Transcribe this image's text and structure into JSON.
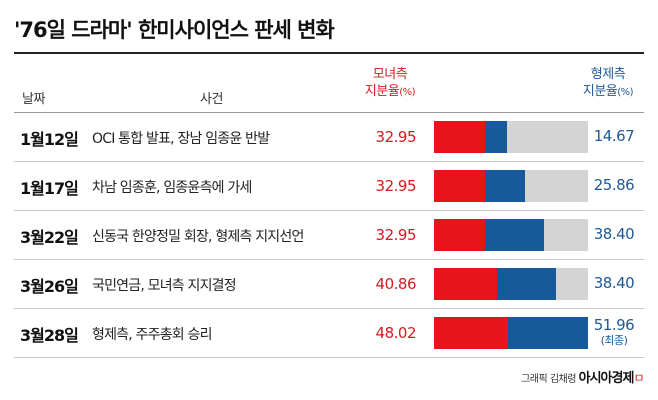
{
  "title": "'76일 드라마' 한미사이언스 판세 변화",
  "headers": {
    "date": "날짜",
    "event": "사건",
    "mom_line1": "모녀측",
    "mom_line2": "지분율",
    "mom_unit": "(%)",
    "bro_line1": "형제측",
    "bro_line2": "지분율",
    "bro_unit": "(%)"
  },
  "colors": {
    "mom": "#e8141c",
    "bro": "#175a9b",
    "other": "#d4d4d4"
  },
  "chart_data": {
    "type": "bar",
    "stacked": true,
    "ylim": [
      0,
      100
    ],
    "categories": [
      "1월12일",
      "1월17일",
      "3월22일",
      "3월26일",
      "3월28일"
    ],
    "events": [
      "OCI 통합 발표, 장남 임종윤 반발",
      "차남 임종훈, 임종윤측에 가세",
      "신동국 한양정밀 회장, 형제측 지지선언",
      "국민연금, 모녀측 지지결정",
      "형제측, 주주총회 승리"
    ],
    "series": [
      {
        "name": "모녀측",
        "values": [
          32.95,
          32.95,
          32.95,
          40.86,
          48.02
        ]
      },
      {
        "name": "형제측",
        "values": [
          14.67,
          25.86,
          38.4,
          38.4,
          51.96
        ]
      }
    ],
    "bro_labels": [
      "14.67",
      "25.86",
      "38.40",
      "38.40",
      "51.96"
    ],
    "mom_labels": [
      "32.95",
      "32.95",
      "32.95",
      "40.86",
      "48.02"
    ],
    "final_note": "(최종)"
  },
  "credit": {
    "text": "그래픽 김채령",
    "brand": "아시아경제",
    "mark": "ㅁ"
  }
}
